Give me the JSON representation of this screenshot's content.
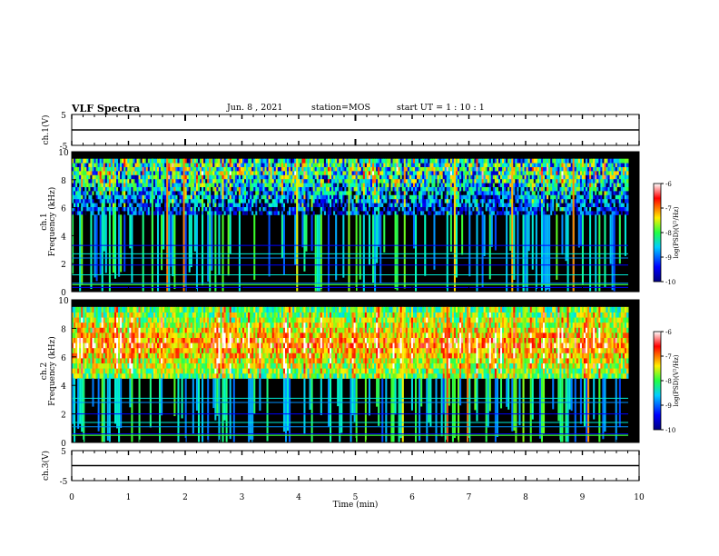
{
  "header": {
    "title": "VLF Spectra",
    "date": "Jun. 8 , 2021",
    "station": "station=MOS",
    "start_time": "start UT = 1 : 10 : 1"
  },
  "chart_data": [
    {
      "type": "line",
      "panel": "ch1-waveform",
      "ylabel": "ch.1(V)",
      "ylim": [
        -5,
        5
      ],
      "yticks": [
        5,
        -5
      ],
      "series": [
        {
          "x": [
            0,
            10
          ],
          "y": [
            0,
            0
          ]
        }
      ],
      "xlim": [
        0,
        10
      ]
    },
    {
      "type": "heatmap",
      "panel": "ch1-spectrogram",
      "ylabel": "ch.1\nFrequency (kHz)",
      "ylim": [
        0,
        10
      ],
      "yticks": [
        0,
        2,
        4,
        6,
        8,
        10
      ],
      "xlim": [
        0,
        10
      ],
      "main_band_khz": [
        5.5,
        9.5
      ],
      "colorbar": {
        "label": "log(PSD)(V²/Hz)",
        "range": [
          -10,
          -6
        ],
        "ticks": [
          "-6",
          "-7",
          "-8",
          "-9",
          "-10"
        ]
      }
    },
    {
      "type": "heatmap",
      "panel": "ch2-spectrogram",
      "ylabel": "ch.2\nFrequency (kHz)",
      "ylim": [
        0,
        10
      ],
      "yticks": [
        0,
        2,
        4,
        6,
        8,
        10
      ],
      "xlim": [
        0,
        10
      ],
      "main_band_khz": [
        4.5,
        9.5
      ],
      "colorbar": {
        "label": "log(PSD)(V²/Hz)",
        "range": [
          -10,
          -6
        ],
        "ticks": [
          "-6",
          "-7",
          "-8",
          "-9",
          "-10"
        ]
      }
    },
    {
      "type": "line",
      "panel": "ch3-waveform",
      "ylabel": "ch.3(V)",
      "ylim": [
        -5,
        5
      ],
      "yticks": [
        5,
        -5
      ],
      "series": [
        {
          "x": [
            0,
            10
          ],
          "y": [
            0,
            0
          ]
        }
      ],
      "xlim": [
        0,
        10
      ],
      "xlabel": "Time (min)",
      "xticks": [
        0,
        1,
        2,
        3,
        4,
        5,
        6,
        7,
        8,
        9,
        10
      ]
    }
  ],
  "colors": {
    "background": "#000000",
    "colormap": [
      "#00007f",
      "#0000ff",
      "#00aaff",
      "#00ffdd",
      "#33ff33",
      "#ffff00",
      "#ff8800",
      "#ff0000",
      "#ffffff"
    ]
  }
}
